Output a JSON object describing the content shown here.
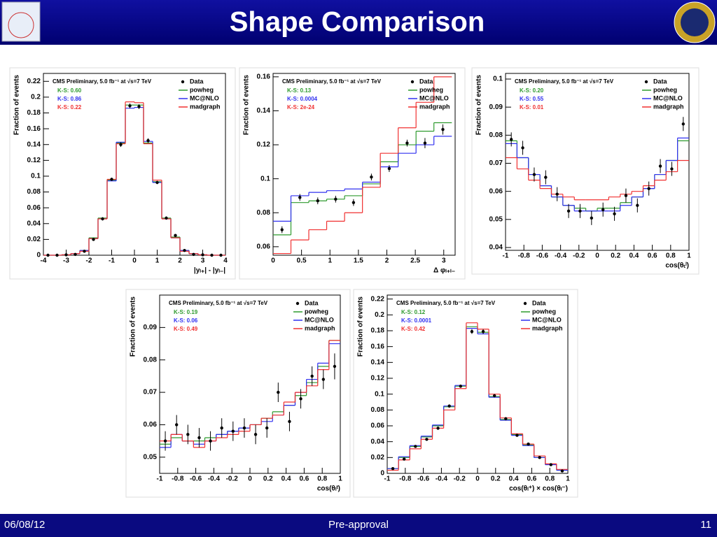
{
  "slide": {
    "title": "Shape Comparison",
    "date": "06/08/12",
    "footer": "Pre-approval",
    "page": "11"
  },
  "chart_data": [
    {
      "type": "histogram",
      "title": "CMS Preliminary, 5.0 fb⁻¹ at √s=7 TeV",
      "y_label": "Fraction of events",
      "x_label": "|yₗ₊| - |yₗ₋|",
      "bins": [
        -4,
        -3.6,
        -3.2,
        -2.8,
        -2.4,
        -2,
        -1.6,
        -1.2,
        -0.8,
        -0.4,
        0,
        0.4,
        0.8,
        1.2,
        1.6,
        2,
        2.4,
        2.8,
        3.2,
        3.6,
        4
      ],
      "xlim": [
        -4,
        4
      ],
      "xticks": [
        -4,
        -3,
        -2,
        -1,
        0,
        1,
        2,
        3,
        4
      ],
      "ylim": [
        0,
        0.23
      ],
      "yticks": [
        0,
        0.02,
        0.04,
        0.06,
        0.08,
        0.1,
        0.12,
        0.14,
        0.16,
        0.18,
        0.2,
        0.22
      ],
      "ks_labels": [
        "K-S: 0.60",
        "K-S: 0.86",
        "K-S: 0.22"
      ],
      "series": [
        {
          "name": "powheg",
          "color": "#2e9a2e",
          "values": [
            0,
            0,
            0.0005,
            0.002,
            0.006,
            0.022,
            0.047,
            0.095,
            0.142,
            0.19,
            0.19,
            0.142,
            0.093,
            0.047,
            0.023,
            0.006,
            0.002,
            0.0005,
            0,
            0
          ]
        },
        {
          "name": "MC@NLO",
          "color": "#3030f0",
          "values": [
            0,
            0,
            0.0005,
            0.002,
            0.006,
            0.021,
            0.046,
            0.094,
            0.143,
            0.186,
            0.187,
            0.144,
            0.092,
            0.046,
            0.022,
            0.006,
            0.002,
            0.0005,
            0,
            0
          ]
        },
        {
          "name": "madgraph",
          "color": "#f03030",
          "values": [
            0,
            0,
            0.0005,
            0.002,
            0.005,
            0.021,
            0.046,
            0.096,
            0.141,
            0.194,
            0.193,
            0.141,
            0.095,
            0.046,
            0.022,
            0.005,
            0.002,
            0.0005,
            0,
            0
          ]
        }
      ],
      "data": {
        "name": "Data",
        "values": [
          0,
          0,
          0.0005,
          0.001,
          0.005,
          0.02,
          0.046,
          0.096,
          0.14,
          0.189,
          0.188,
          0.145,
          0.092,
          0.047,
          0.025,
          0.006,
          0.001,
          0.0005,
          0,
          0
        ],
        "errors": [
          0,
          0,
          0.0005,
          0.001,
          0.001,
          0.0015,
          0.002,
          0.002,
          0.003,
          0.003,
          0.003,
          0.003,
          0.002,
          0.002,
          0.0015,
          0.001,
          0.001,
          0.0005,
          0,
          0
        ]
      }
    },
    {
      "type": "histogram",
      "title": "CMS Preliminary, 5.0 fb⁻¹ at √s=7 TeV",
      "y_label": "Fraction of events",
      "x_label": "Δ φₗ₊ₗ₋",
      "bins": [
        0,
        0.314,
        0.628,
        0.942,
        1.257,
        1.571,
        1.885,
        2.199,
        2.513,
        2.827,
        3.142
      ],
      "xlim": [
        0,
        3.2
      ],
      "xticks": [
        0,
        0.5,
        1,
        1.5,
        2,
        2.5,
        3
      ],
      "ylim": [
        0.055,
        0.162
      ],
      "yticks": [
        0.06,
        0.08,
        0.1,
        0.12,
        0.14,
        0.16
      ],
      "ks_labels": [
        "K-S: 0.13",
        "K-S: 0.0004",
        "K-S: 2e-24"
      ],
      "series": [
        {
          "name": "powheg",
          "color": "#2e9a2e",
          "values": [
            0.067,
            0.086,
            0.087,
            0.088,
            0.09,
            0.097,
            0.11,
            0.12,
            0.128,
            0.133
          ]
        },
        {
          "name": "MC@NLO",
          "color": "#3030f0",
          "values": [
            0.075,
            0.09,
            0.092,
            0.093,
            0.094,
            0.098,
            0.107,
            0.115,
            0.12,
            0.125
          ]
        },
        {
          "name": "madgraph",
          "color": "#f03030",
          "values": [
            0.056,
            0.064,
            0.07,
            0.075,
            0.08,
            0.095,
            0.115,
            0.13,
            0.145,
            0.16
          ]
        }
      ],
      "data": {
        "name": "Data",
        "values": [
          0.07,
          0.089,
          0.087,
          0.088,
          0.086,
          0.101,
          0.106,
          0.121,
          0.121,
          0.129
        ],
        "errors": [
          0.002,
          0.002,
          0.002,
          0.002,
          0.002,
          0.002,
          0.002,
          0.002,
          0.003,
          0.003
        ]
      }
    },
    {
      "type": "histogram",
      "title": "CMS Preliminary, 5.0 fb⁻¹ at √s=7 TeV",
      "y_label": "Fraction of events",
      "x_label": "cos(θₜˡ)",
      "bins": [
        -1,
        -0.875,
        -0.75,
        -0.625,
        -0.5,
        -0.375,
        -0.25,
        -0.125,
        0,
        0.125,
        0.25,
        0.375,
        0.5,
        0.625,
        0.75,
        0.875,
        1
      ],
      "xlim": [
        -1,
        1
      ],
      "xticks": [
        -1,
        -0.8,
        -0.6,
        -0.4,
        -0.2,
        0,
        0.2,
        0.4,
        0.6,
        0.8,
        1
      ],
      "ylim": [
        0.039,
        0.102
      ],
      "yticks": [
        0.04,
        0.05,
        0.06,
        0.07,
        0.08,
        0.09,
        0.1
      ],
      "ks_labels": [
        "K-S: 0.20",
        "K-S: 0.55",
        "K-S: 0.01"
      ],
      "series": [
        {
          "name": "powheg",
          "color": "#2e9a2e",
          "values": [
            0.078,
            0.072,
            0.066,
            0.062,
            0.058,
            0.055,
            0.054,
            0.053,
            0.054,
            0.054,
            0.056,
            0.058,
            0.061,
            0.066,
            0.071,
            0.078
          ]
        },
        {
          "name": "MC@NLO",
          "color": "#3030f0",
          "values": [
            0.077,
            0.072,
            0.066,
            0.062,
            0.058,
            0.055,
            0.053,
            0.053,
            0.053,
            0.053,
            0.055,
            0.058,
            0.061,
            0.066,
            0.071,
            0.079
          ]
        },
        {
          "name": "madgraph",
          "color": "#f03030",
          "values": [
            0.072,
            0.068,
            0.064,
            0.061,
            0.059,
            0.058,
            0.057,
            0.057,
            0.057,
            0.058,
            0.059,
            0.06,
            0.062,
            0.064,
            0.067,
            0.071
          ]
        }
      ],
      "data": {
        "name": "Data",
        "values": [
          0.0785,
          0.0755,
          0.066,
          0.065,
          0.059,
          0.053,
          0.053,
          0.0505,
          0.0535,
          0.052,
          0.0585,
          0.055,
          0.061,
          0.069,
          0.068,
          0.084
        ],
        "errors": [
          0.0025,
          0.0025,
          0.0025,
          0.0025,
          0.0025,
          0.0025,
          0.0025,
          0.0025,
          0.0025,
          0.0025,
          0.0025,
          0.0025,
          0.0025,
          0.0025,
          0.0025,
          0.0025
        ]
      }
    },
    {
      "type": "histogram",
      "title": "CMS Preliminary, 5.0 fb⁻¹ at √s=7 TeV",
      "y_label": "Fraction of events",
      "x_label": "cos(θₗᵗ)",
      "bins": [
        -1,
        -0.875,
        -0.75,
        -0.625,
        -0.5,
        -0.375,
        -0.25,
        -0.125,
        0,
        0.125,
        0.25,
        0.375,
        0.5,
        0.625,
        0.75,
        0.875,
        1
      ],
      "xlim": [
        -1,
        1
      ],
      "xticks": [
        -1,
        -0.8,
        -0.6,
        -0.4,
        -0.2,
        0,
        0.2,
        0.4,
        0.6,
        0.8,
        1
      ],
      "ylim": [
        0.045,
        0.1
      ],
      "yticks": [
        0.05,
        0.06,
        0.07,
        0.08,
        0.09
      ],
      "ks_labels": [
        "K-S: 0.19",
        "K-S: 0.06",
        "K-S: 0.49"
      ],
      "series": [
        {
          "name": "powheg",
          "color": "#2e9a2e",
          "values": [
            0.054,
            0.056,
            0.055,
            0.055,
            0.056,
            0.057,
            0.058,
            0.059,
            0.06,
            0.062,
            0.064,
            0.066,
            0.069,
            0.073,
            0.078,
            0.086
          ]
        },
        {
          "name": "MC@NLO",
          "color": "#3030f0",
          "values": [
            0.053,
            0.057,
            0.055,
            0.054,
            0.055,
            0.057,
            0.058,
            0.059,
            0.06,
            0.061,
            0.063,
            0.066,
            0.07,
            0.074,
            0.079,
            0.085
          ]
        },
        {
          "name": "madgraph",
          "color": "#f03030",
          "values": [
            0.055,
            0.057,
            0.055,
            0.053,
            0.055,
            0.056,
            0.057,
            0.058,
            0.06,
            0.062,
            0.063,
            0.067,
            0.07,
            0.072,
            0.077,
            0.086
          ]
        }
      ],
      "data": {
        "name": "Data",
        "values": [
          0.055,
          0.06,
          0.057,
          0.056,
          0.055,
          0.059,
          0.058,
          0.059,
          0.057,
          0.059,
          0.07,
          0.061,
          0.068,
          0.075,
          0.074,
          0.078
        ],
        "errors": [
          0.003,
          0.003,
          0.003,
          0.003,
          0.003,
          0.003,
          0.003,
          0.003,
          0.003,
          0.003,
          0.003,
          0.003,
          0.003,
          0.003,
          0.003,
          0.004
        ]
      }
    },
    {
      "type": "histogram",
      "title": "CMS Preliminary, 5.0 fb⁻¹ at √s=7 TeV",
      "y_label": "Fraction of events",
      "x_label": "cos(θₗ⁺) × cos(θₗ⁻)",
      "bins": [
        -1,
        -0.875,
        -0.75,
        -0.625,
        -0.5,
        -0.375,
        -0.25,
        -0.125,
        0,
        0.125,
        0.25,
        0.375,
        0.5,
        0.625,
        0.75,
        0.875,
        1
      ],
      "xlim": [
        -1,
        1
      ],
      "xticks": [
        -1,
        -0.8,
        -0.6,
        -0.4,
        -0.2,
        0,
        0.2,
        0.4,
        0.6,
        0.8,
        1
      ],
      "ylim": [
        0,
        0.225
      ],
      "yticks": [
        0,
        0.02,
        0.04,
        0.06,
        0.08,
        0.1,
        0.12,
        0.14,
        0.16,
        0.18,
        0.2,
        0.22
      ],
      "ks_labels": [
        "K-S: 0.12",
        "K-S: 0.0001",
        "K-S: 0.42"
      ],
      "series": [
        {
          "name": "powheg",
          "color": "#2e9a2e",
          "values": [
            0.006,
            0.02,
            0.034,
            0.046,
            0.06,
            0.084,
            0.11,
            0.185,
            0.178,
            0.097,
            0.068,
            0.049,
            0.036,
            0.02,
            0.011,
            0.004
          ]
        },
        {
          "name": "MC@NLO",
          "color": "#3030f0",
          "values": [
            0.006,
            0.021,
            0.035,
            0.047,
            0.061,
            0.085,
            0.111,
            0.183,
            0.176,
            0.096,
            0.067,
            0.048,
            0.035,
            0.02,
            0.011,
            0.004
          ]
        },
        {
          "name": "madgraph",
          "color": "#f03030",
          "values": [
            0.004,
            0.017,
            0.031,
            0.043,
            0.057,
            0.08,
            0.107,
            0.19,
            0.182,
            0.1,
            0.07,
            0.05,
            0.037,
            0.022,
            0.012,
            0.005
          ]
        }
      ],
      "data": {
        "name": "Data",
        "values": [
          0.006,
          0.018,
          0.034,
          0.043,
          0.057,
          0.085,
          0.11,
          0.179,
          0.179,
          0.098,
          0.069,
          0.048,
          0.037,
          0.02,
          0.011,
          0.003
        ],
        "errors": [
          0.001,
          0.001,
          0.0015,
          0.0015,
          0.002,
          0.002,
          0.002,
          0.003,
          0.003,
          0.002,
          0.002,
          0.0015,
          0.0015,
          0.001,
          0.001,
          0.001
        ]
      }
    }
  ]
}
